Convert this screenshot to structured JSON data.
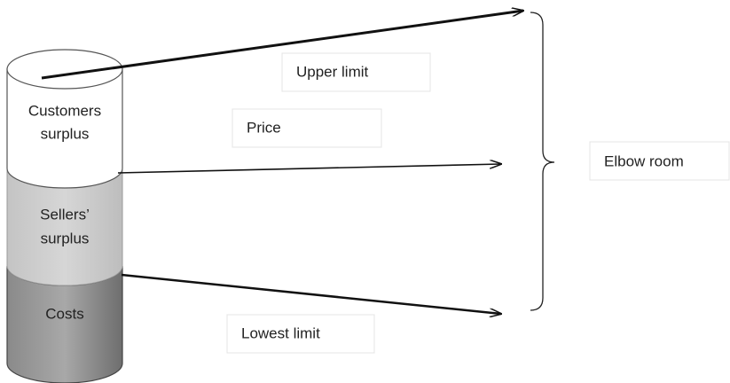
{
  "cylinder": {
    "segments": [
      {
        "lines": [
          "Customers",
          "surplus"
        ]
      },
      {
        "lines": [
          "Sellers’",
          "surplus"
        ]
      },
      {
        "lines": [
          "Costs"
        ]
      }
    ]
  },
  "labels": {
    "upper": "Upper limit",
    "price": "Price",
    "lowest": "Lowest limit",
    "brace": "Elbow room"
  }
}
